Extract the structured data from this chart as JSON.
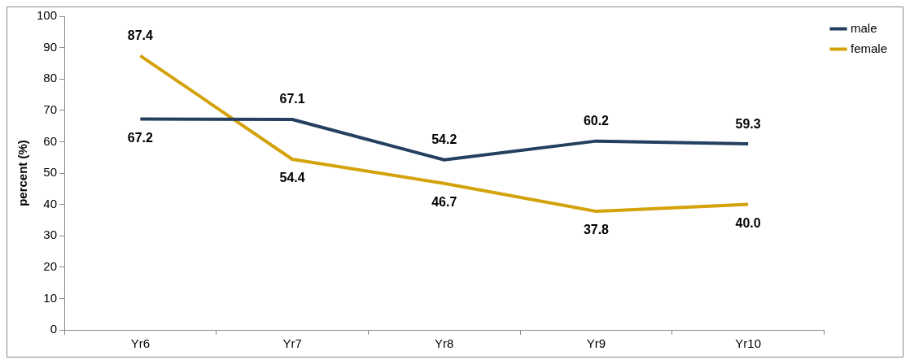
{
  "chart_data": {
    "type": "line",
    "ylabel": "percent (%)",
    "categories": [
      "Yr6",
      "Yr7",
      "Yr8",
      "Yr9",
      "Yr10"
    ],
    "series": [
      {
        "name": "male",
        "color": "#243f60",
        "values": [
          67.2,
          67.1,
          54.2,
          60.2,
          59.3
        ],
        "value_labels": [
          "67.2",
          "67.1",
          "54.2",
          "60.2",
          "59.3"
        ]
      },
      {
        "name": "female",
        "color": "#d4a20a",
        "values": [
          87.4,
          54.4,
          46.7,
          37.8,
          40.0
        ],
        "value_labels": [
          "87.4",
          "54.4",
          "46.7",
          "37.8",
          "40.0"
        ]
      }
    ],
    "ylim": [
      0,
      100
    ],
    "yticks": [
      0,
      10,
      20,
      30,
      40,
      50,
      60,
      70,
      80,
      90,
      100
    ],
    "grid": false,
    "legend": "top right",
    "marker": "none",
    "line_style": "solid"
  }
}
